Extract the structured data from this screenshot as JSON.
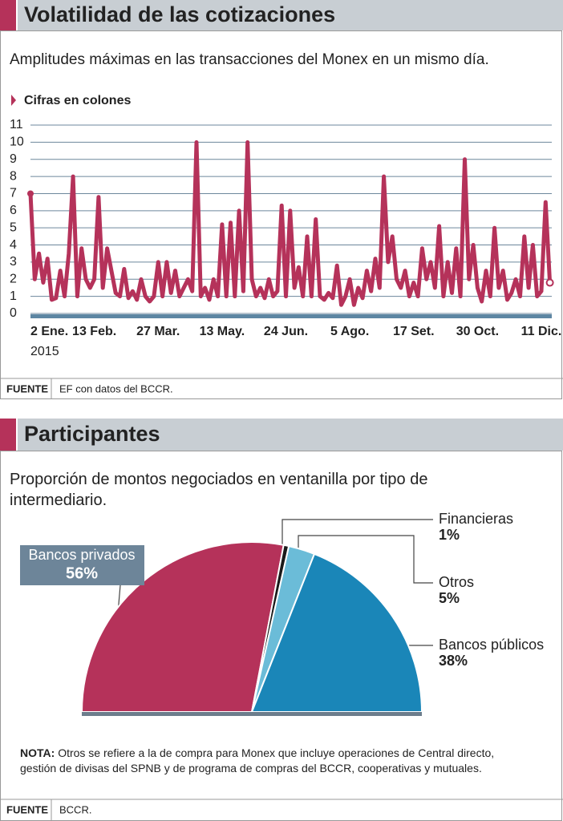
{
  "chart_data": [
    {
      "type": "line",
      "title": "Volatilidad de las cotizaciones",
      "subtitle": "Amplitudes máximas en las transacciones del Monex en un mismo día.",
      "unit_label": "Cifras en colones",
      "categories": [
        "2 Ene.",
        null,
        null,
        null,
        null,
        null,
        null,
        null,
        null,
        null,
        null,
        null,
        null,
        null,
        null,
        "13 Feb.",
        null,
        null,
        null,
        null,
        null,
        null,
        null,
        null,
        null,
        null,
        null,
        null,
        null,
        null,
        "27 Mar.",
        null,
        null,
        null,
        null,
        null,
        null,
        null,
        null,
        null,
        null,
        null,
        null,
        null,
        null,
        "13 May.",
        null,
        null,
        null,
        null,
        null,
        null,
        null,
        null,
        null,
        null,
        null,
        null,
        null,
        null,
        "24 Jun.",
        null,
        null,
        null,
        null,
        null,
        null,
        null,
        null,
        null,
        null,
        null,
        null,
        null,
        null,
        "5 Ago.",
        null,
        null,
        null,
        null,
        null,
        null,
        null,
        null,
        null,
        null,
        null,
        null,
        null,
        null,
        "17 Set.",
        null,
        null,
        null,
        null,
        null,
        null,
        null,
        null,
        null,
        null,
        null,
        null,
        null,
        null,
        "30 Oct.",
        null,
        null,
        null,
        null,
        null,
        null,
        null,
        null,
        null,
        null,
        null,
        null,
        null,
        null,
        "11 Dic.",
        null,
        null
      ],
      "year_label": "2015",
      "values": [
        7,
        2,
        3.5,
        1.8,
        3.2,
        0.8,
        0.9,
        2.5,
        1,
        3.5,
        8,
        1,
        3.8,
        2,
        1.5,
        2,
        6.8,
        1.5,
        3.8,
        2.5,
        1.2,
        1,
        2.6,
        0.9,
        1.3,
        0.8,
        2,
        1,
        0.7,
        1,
        3,
        1,
        3,
        1.2,
        2.5,
        1,
        1.5,
        2,
        1.3,
        10,
        1,
        1.5,
        0.8,
        2,
        1,
        5.2,
        1,
        5.3,
        1,
        6,
        1.3,
        10,
        2,
        1,
        1.5,
        0.9,
        2,
        1,
        1.3,
        6.3,
        1,
        6,
        1.5,
        2.7,
        1,
        4.5,
        1,
        5.5,
        1,
        0.8,
        1.2,
        0.9,
        2.8,
        0.5,
        1,
        2,
        0.5,
        1.5,
        0.9,
        2.5,
        1.3,
        3.2,
        1.5,
        8,
        3,
        4.5,
        2,
        1.5,
        2.5,
        1,
        1.8,
        1,
        3.8,
        2,
        3,
        1.5,
        5.1,
        1,
        3,
        1.2,
        3.8,
        1,
        9,
        2,
        4,
        1.5,
        0.7,
        2.5,
        1,
        5,
        1.5,
        2.5,
        0.8,
        1.2,
        2,
        1,
        4.5,
        1.5,
        4,
        1,
        1.3,
        6.5,
        1.8
      ],
      "color": "#b5325a",
      "ylim": [
        0,
        11
      ],
      "yticks": [
        0,
        1,
        2,
        3,
        4,
        5,
        6,
        7,
        8,
        9,
        10,
        11
      ],
      "grid": true,
      "source_label": "FUENTE",
      "source": "EF con datos del BCCR."
    },
    {
      "type": "pie",
      "title": "Participantes",
      "subtitle": "Proporción de montos negociados en ventanilla por tipo de intermediario.",
      "categories": [
        "Bancos privados",
        "Financieras",
        "Otros",
        "Bancos públicos"
      ],
      "values": [
        56,
        1,
        5,
        38
      ],
      "value_labels": [
        "56%",
        "1%",
        "5%",
        "38%"
      ],
      "colors": [
        "#b5325a",
        "#1a1a1a",
        "#6bbcd8",
        "#1a86b8"
      ],
      "note_label": "NOTA:",
      "note": "Otros se refiere a la de compra para Monex que incluye operaciones de Central directo, gestión de divisas del SPNB y de programa de compras del BCCR, cooperativas y mutuales.",
      "source_label": "FUENTE",
      "source": "BCCR."
    }
  ]
}
